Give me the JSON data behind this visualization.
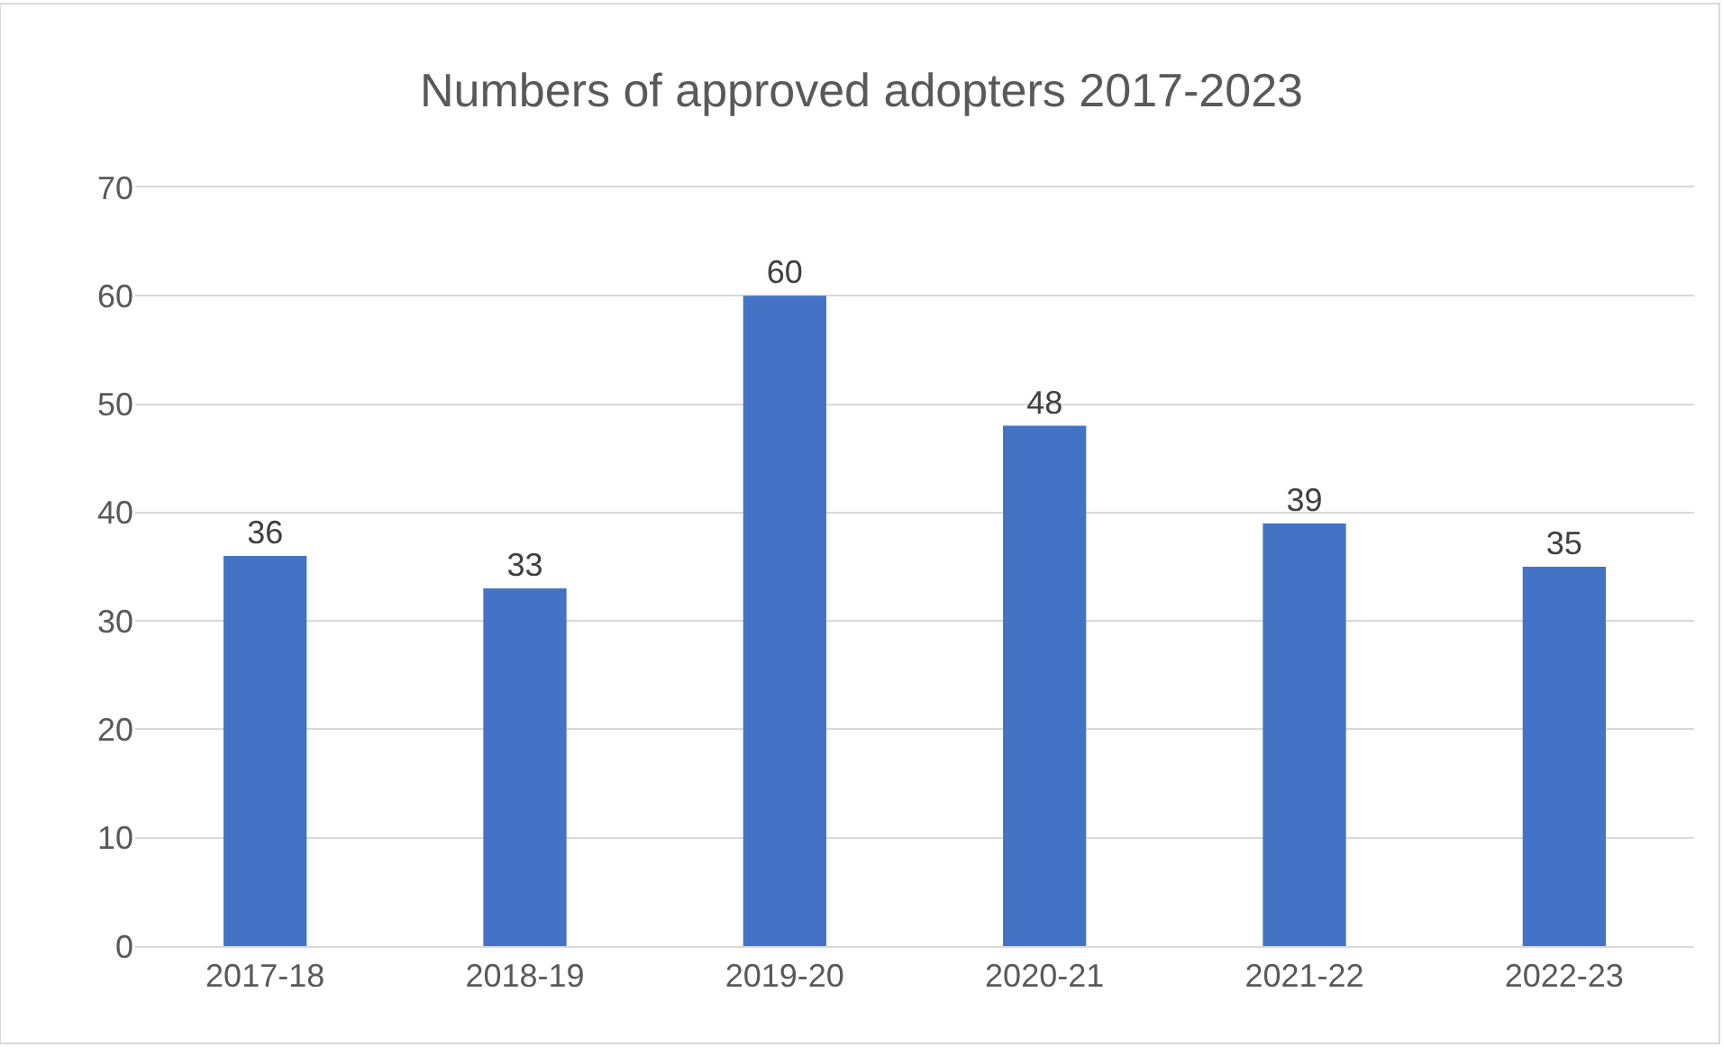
{
  "chart_data": {
    "type": "bar",
    "title": "Numbers of approved adopters 2017-2023",
    "categories": [
      "2017-18",
      "2018-19",
      "2019-20",
      "2020-21",
      "2021-22",
      "2022-23"
    ],
    "values": [
      36,
      33,
      60,
      48,
      39,
      35
    ],
    "color": "#4472c4",
    "ylim": [
      0,
      70
    ],
    "yticks": [
      0,
      10,
      20,
      30,
      40,
      50,
      60,
      70
    ],
    "grid": "y",
    "data_labels": true
  }
}
